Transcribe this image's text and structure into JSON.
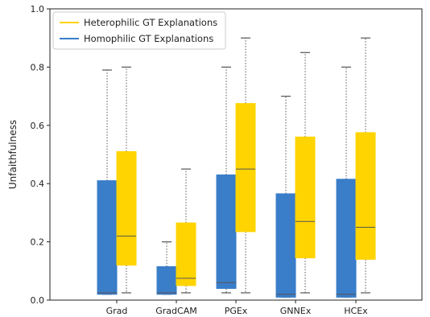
{
  "chart_data": {
    "type": "box",
    "ylabel": "Unfaithfulness",
    "ylim": [
      0,
      1.0
    ],
    "yticks": [
      "0.0",
      "0.2",
      "0.4",
      "0.6",
      "0.8",
      "1.0"
    ],
    "categories": [
      "Grad",
      "GradCAM",
      "PGEx",
      "GNNEx",
      "HCEx"
    ],
    "legend_position": "top-left",
    "grid": false,
    "series": [
      {
        "name": "Homophilic GT Explanations",
        "color": "#3a7dc9",
        "boxes": [
          {
            "whisker_low": 0.02,
            "q1": 0.02,
            "median": 0.025,
            "q3": 0.41,
            "whisker_high": 0.79
          },
          {
            "whisker_low": 0.02,
            "q1": 0.02,
            "median": 0.025,
            "q3": 0.115,
            "whisker_high": 0.2
          },
          {
            "whisker_low": 0.025,
            "q1": 0.04,
            "median": 0.06,
            "q3": 0.43,
            "whisker_high": 0.8
          },
          {
            "whisker_low": 0.01,
            "q1": 0.01,
            "median": 0.02,
            "q3": 0.365,
            "whisker_high": 0.7
          },
          {
            "whisker_low": 0.01,
            "q1": 0.01,
            "median": 0.02,
            "q3": 0.415,
            "whisker_high": 0.8
          }
        ]
      },
      {
        "name": "Heterophilic GT Explanations",
        "color": "#ffd400",
        "boxes": [
          {
            "whisker_low": 0.025,
            "q1": 0.12,
            "median": 0.22,
            "q3": 0.51,
            "whisker_high": 0.8
          },
          {
            "whisker_low": 0.025,
            "q1": 0.05,
            "median": 0.075,
            "q3": 0.265,
            "whisker_high": 0.45
          },
          {
            "whisker_low": 0.025,
            "q1": 0.235,
            "median": 0.45,
            "q3": 0.675,
            "whisker_high": 0.9
          },
          {
            "whisker_low": 0.025,
            "q1": 0.145,
            "median": 0.27,
            "q3": 0.56,
            "whisker_high": 0.85
          },
          {
            "whisker_low": 0.025,
            "q1": 0.14,
            "median": 0.25,
            "q3": 0.575,
            "whisker_high": 0.9
          }
        ]
      }
    ]
  }
}
